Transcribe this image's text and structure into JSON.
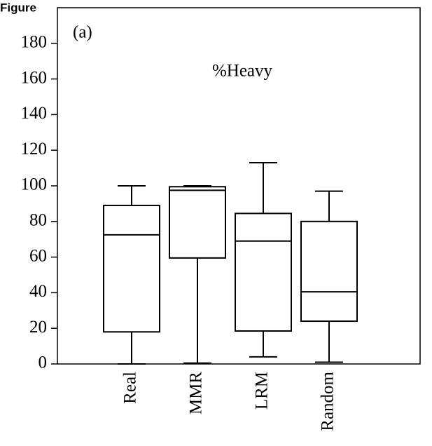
{
  "header": "Figure",
  "chart_data": {
    "type": "box",
    "title": "%Heavy",
    "panel_label": "(a)",
    "categories": [
      "Real",
      "MMR",
      "LRM",
      "Random"
    ],
    "min": [
      0,
      0.5,
      4,
      1
    ],
    "q1": [
      18,
      59.5,
      18.5,
      24
    ],
    "median": [
      72.5,
      97.5,
      69,
      40.5
    ],
    "q3": [
      89,
      99.5,
      84.5,
      80
    ],
    "max": [
      100,
      100,
      113,
      97
    ],
    "color": "#000000",
    "ylim": [
      0,
      200
    ],
    "yticks": [
      0,
      20,
      40,
      60,
      80,
      100,
      120,
      140,
      160,
      180
    ]
  }
}
